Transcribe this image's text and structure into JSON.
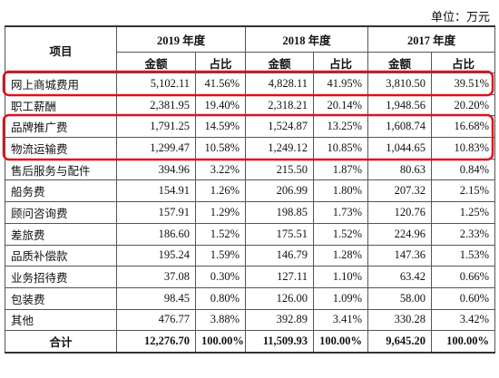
{
  "unit": "单位：万元",
  "header": {
    "item": "项目",
    "years": [
      {
        "year": "2019 年度",
        "cols": [
          "金额",
          "占比"
        ]
      },
      {
        "year": "2018 年度",
        "cols": [
          "金额",
          "占比"
        ]
      },
      {
        "year": "2017 年度",
        "cols": [
          "金额",
          "占比"
        ]
      }
    ]
  },
  "rows": [
    [
      "网上商城费用",
      "5,102.11",
      "41.56%",
      "4,828.11",
      "41.95%",
      "3,810.50",
      "39.51%"
    ],
    [
      "职工薪酬",
      "2,381.95",
      "19.40%",
      "2,318.21",
      "20.14%",
      "1,948.56",
      "20.20%"
    ],
    [
      "品牌推广费",
      "1,791.25",
      "14.59%",
      "1,524.87",
      "13.25%",
      "1,608.74",
      "16.68%"
    ],
    [
      "物流运输费",
      "1,299.47",
      "10.58%",
      "1,249.12",
      "10.85%",
      "1,044.65",
      "10.83%"
    ],
    [
      "售后服务与配件",
      "394.96",
      "3.22%",
      "215.50",
      "1.87%",
      "80.63",
      "0.84%"
    ],
    [
      "船务费",
      "154.91",
      "1.26%",
      "206.99",
      "1.80%",
      "207.32",
      "2.15%"
    ],
    [
      "顾问咨询费",
      "157.91",
      "1.29%",
      "198.85",
      "1.73%",
      "120.76",
      "1.25%"
    ],
    [
      "差旅费",
      "186.60",
      "1.52%",
      "175.51",
      "1.52%",
      "224.96",
      "2.33%"
    ],
    [
      "品质补偿款",
      "195.24",
      "1.59%",
      "146.79",
      "1.28%",
      "147.36",
      "1.53%"
    ],
    [
      "业务招待费",
      "37.08",
      "0.30%",
      "127.11",
      "1.10%",
      "63.42",
      "0.66%"
    ],
    [
      "包装费",
      "98.45",
      "0.80%",
      "126.00",
      "1.09%",
      "58.00",
      "0.60%"
    ],
    [
      "其他",
      "476.77",
      "3.88%",
      "392.89",
      "3.41%",
      "330.28",
      "3.42%"
    ]
  ],
  "total": [
    "合计",
    "12,276.70",
    "100.00%",
    "11,509.93",
    "100.00%",
    "9,645.20",
    "100.00%"
  ]
}
